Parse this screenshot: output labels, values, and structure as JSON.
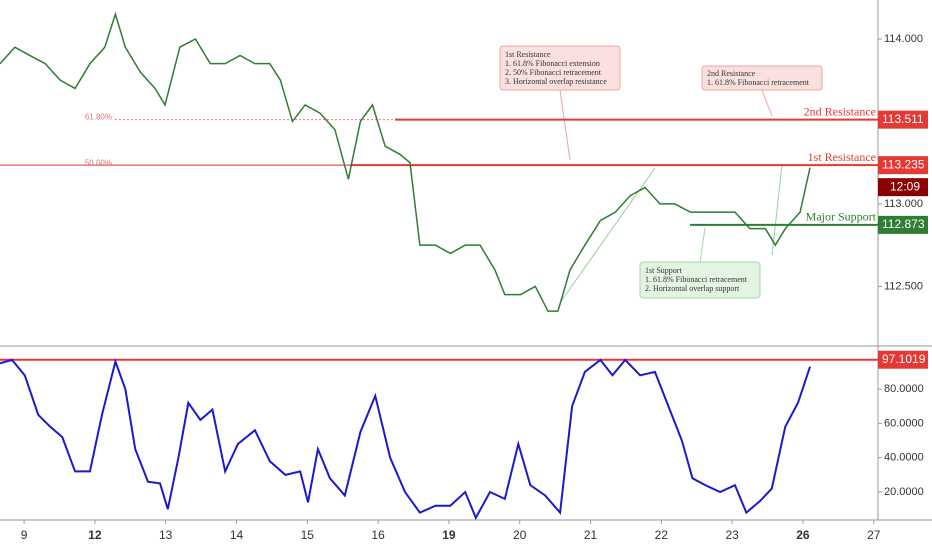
{
  "chart_data": [
    {
      "type": "line",
      "xlim": [
        -0.34,
        12.06
      ],
      "xticks": [
        {
          "value": 0,
          "label": "9"
        },
        {
          "value": 1,
          "label": "12"
        },
        {
          "value": 2,
          "label": "13"
        },
        {
          "value": 3,
          "label": "14"
        },
        {
          "value": 4,
          "label": "15"
        },
        {
          "value": 5,
          "label": "16"
        },
        {
          "value": 6,
          "label": "19"
        },
        {
          "value": 7,
          "label": "20"
        },
        {
          "value": 8,
          "label": "21"
        },
        {
          "value": 9,
          "label": "22"
        },
        {
          "value": 10,
          "label": "23"
        },
        {
          "value": 11,
          "label": "26"
        },
        {
          "value": 12,
          "label": "27"
        }
      ],
      "ylim": [
        112.145,
        114.236
      ],
      "yticks": [
        {
          "value": 112.5,
          "label": "112.500"
        },
        {
          "value": 113,
          "label": "113.000"
        },
        {
          "value": 114,
          "label": "114.000"
        }
      ],
      "x": [
        -0.34,
        -0.13,
        0.08,
        0.3,
        0.51,
        0.72,
        0.93,
        1.14,
        1.29,
        1.43,
        1.64,
        1.85,
        1.99,
        2.2,
        2.42,
        2.63,
        2.84,
        3.05,
        3.26,
        3.47,
        3.62,
        3.79,
        3.97,
        4.18,
        4.39,
        4.58,
        4.75,
        4.92,
        5.1,
        5.31,
        5.45,
        5.59,
        5.81,
        6.02,
        6.23,
        6.44,
        6.65,
        6.79,
        7.01,
        7.22,
        7.4,
        7.54,
        7.71,
        7.92,
        8.14,
        8.35,
        8.56,
        8.77,
        8.98,
        9.19,
        9.41,
        9.62,
        9.83,
        10.04,
        10.25,
        10.47,
        10.61,
        10.75,
        10.96,
        11.1
      ],
      "series": [
        {
          "color": "#2e7d32",
          "values": [
            113.85,
            113.95,
            113.9,
            113.85,
            113.75,
            113.7,
            113.85,
            113.95,
            114.15,
            113.95,
            113.8,
            113.7,
            113.6,
            113.95,
            114.0,
            113.85,
            113.85,
            113.9,
            113.85,
            113.85,
            113.75,
            113.5,
            113.6,
            113.55,
            113.45,
            113.15,
            113.5,
            113.6,
            113.35,
            113.3,
            113.25,
            112.75,
            112.75,
            112.7,
            112.75,
            112.75,
            112.6,
            112.45,
            112.45,
            112.5,
            112.35,
            112.35,
            112.6,
            112.75,
            112.9,
            112.95,
            113.05,
            113.1,
            113.0,
            113.0,
            112.95,
            112.95,
            112.95,
            112.95,
            112.85,
            112.85,
            112.75,
            112.85,
            112.95,
            113.22
          ]
        }
      ],
      "fib_levels": [
        {
          "label": "61.80%",
          "value": 113.511
        },
        {
          "label": "50.00%",
          "value": 113.235
        }
      ],
      "levels": [
        {
          "name": "2nd Resistance",
          "value": 113.511,
          "color": "#e53935"
        },
        {
          "name": "1st Resistance",
          "value": 113.235,
          "color": "#e53935"
        },
        {
          "name": "Major Support",
          "value": 112.873,
          "color": "#2e7d32"
        }
      ],
      "countdown": "12:09",
      "annotations": [
        {
          "lines": [
            "1st Resistance",
            "1. 61.8% Fibonacci extension",
            "2. 50% Fibonacci retracement",
            "3. Horizontal overlap resistance"
          ]
        },
        {
          "lines": [
            "2nd Resistance",
            "1. 61.8% Fibonacci retracement"
          ]
        },
        {
          "lines": [
            "1st Support",
            "1. 61.8% Fibonacci retracement",
            "2. Horizontal overlap support"
          ]
        }
      ]
    },
    {
      "type": "line",
      "xlim": [
        -0.34,
        12.06
      ],
      "ylim": [
        3.7,
        104.5
      ],
      "yticks": [
        {
          "value": 20,
          "label": "20.0000"
        },
        {
          "value": 40,
          "label": "40.0000"
        },
        {
          "value": 60,
          "label": "60.0000"
        },
        {
          "value": 80,
          "label": "80.0000"
        }
      ],
      "x": [
        -0.34,
        -0.17,
        0.01,
        0.2,
        0.37,
        0.54,
        0.72,
        0.93,
        1.1,
        1.29,
        1.43,
        1.57,
        1.75,
        1.92,
        2.03,
        2.18,
        2.32,
        2.49,
        2.66,
        2.84,
        3.02,
        3.26,
        3.47,
        3.69,
        3.9,
        4.01,
        4.15,
        4.32,
        4.53,
        4.75,
        4.96,
        5.17,
        5.38,
        5.59,
        5.81,
        6.02,
        6.23,
        6.38,
        6.58,
        6.79,
        6.98,
        7.15,
        7.36,
        7.57,
        7.74,
        7.92,
        8.14,
        8.31,
        8.49,
        8.7,
        8.91,
        9.1,
        9.29,
        9.44,
        9.62,
        9.83,
        10.04,
        10.2,
        10.4,
        10.56,
        10.75,
        10.93,
        11.1
      ],
      "series": [
        {
          "color": "#1a1acc",
          "values": [
            95,
            97,
            88,
            65,
            58,
            52,
            32,
            32,
            65,
            96,
            80,
            45,
            26,
            25,
            10,
            40,
            72,
            62,
            68,
            32,
            48,
            56,
            38,
            30,
            32,
            14,
            45,
            28,
            18,
            55,
            76,
            40,
            20,
            8,
            12,
            12,
            20,
            5,
            20,
            16,
            48,
            24,
            18,
            8,
            70,
            90,
            97,
            88,
            97,
            88,
            90,
            70,
            50,
            28,
            24,
            20,
            24,
            8,
            15,
            22,
            58,
            72,
            93
          ]
        }
      ],
      "levels": [
        {
          "value": 97.1019,
          "color": "#e53935"
        }
      ]
    }
  ]
}
